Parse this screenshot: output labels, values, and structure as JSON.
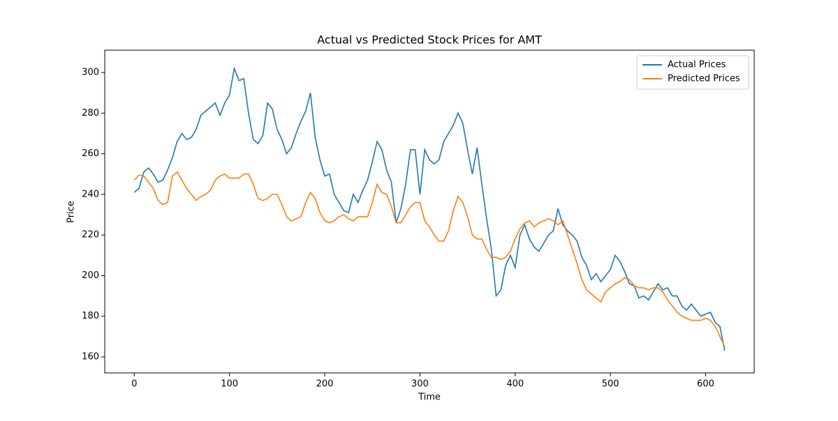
{
  "chart_data": {
    "type": "line",
    "title": "Actual vs Predicted Stock Prices for AMT",
    "xlabel": "Time",
    "ylabel": "Price",
    "x": [
      0,
      5,
      10,
      15,
      20,
      25,
      30,
      35,
      40,
      45,
      50,
      55,
      60,
      65,
      70,
      75,
      80,
      85,
      90,
      95,
      100,
      105,
      110,
      115,
      120,
      125,
      130,
      135,
      140,
      145,
      150,
      155,
      160,
      165,
      170,
      175,
      180,
      185,
      190,
      195,
      200,
      205,
      210,
      215,
      220,
      225,
      230,
      235,
      240,
      245,
      250,
      255,
      260,
      265,
      270,
      275,
      280,
      285,
      290,
      295,
      300,
      305,
      310,
      315,
      320,
      325,
      330,
      335,
      340,
      345,
      350,
      355,
      360,
      365,
      370,
      375,
      380,
      385,
      390,
      395,
      400,
      405,
      410,
      415,
      420,
      425,
      430,
      435,
      440,
      445,
      450,
      455,
      460,
      465,
      470,
      475,
      480,
      485,
      490,
      495,
      500,
      505,
      510,
      515,
      520,
      525,
      530,
      535,
      540,
      545,
      550,
      555,
      560,
      565,
      570,
      575,
      580,
      585,
      590,
      595,
      600,
      605,
      610,
      615,
      620
    ],
    "series": [
      {
        "name": "Actual Prices",
        "color": "#1f77b4",
        "values": [
          241,
          243,
          251,
          253,
          250,
          246,
          247,
          252,
          258,
          266,
          270,
          267,
          268,
          272,
          279,
          281,
          283,
          285,
          279,
          285,
          289,
          302,
          296,
          297,
          280,
          267,
          265,
          269,
          285,
          282,
          272,
          267,
          260,
          263,
          270,
          276,
          281,
          290,
          268,
          257,
          249,
          250,
          240,
          236,
          232,
          231,
          240,
          236,
          242,
          247,
          256,
          266,
          262,
          252,
          246,
          226,
          233,
          245,
          262,
          262,
          240,
          262,
          257,
          255,
          257,
          266,
          270,
          274,
          280,
          275,
          262,
          250,
          263,
          245,
          228,
          213,
          190,
          193,
          205,
          210,
          204,
          220,
          225,
          218,
          214,
          212,
          216,
          220,
          222,
          233,
          225,
          222,
          220,
          217,
          209,
          205,
          198,
          201,
          197,
          200,
          203,
          210,
          207,
          202,
          196,
          195,
          189,
          190,
          188,
          192,
          196,
          193,
          194,
          190,
          190,
          185,
          183,
          186,
          183,
          180,
          181,
          182,
          177,
          175,
          163
        ]
      },
      {
        "name": "Predicted Prices",
        "color": "#ff7f0e",
        "values": [
          247,
          249.5,
          249,
          246,
          243,
          237,
          235,
          236,
          249,
          251,
          247,
          243,
          240,
          237,
          239,
          240,
          242,
          247,
          249,
          250,
          248,
          248,
          248,
          250,
          250,
          245,
          238,
          237,
          238,
          240,
          240,
          235,
          229,
          227,
          228,
          229,
          236,
          241,
          238,
          231,
          227,
          226,
          227,
          229,
          230,
          228,
          227,
          229,
          229,
          229,
          236,
          245,
          241,
          240,
          234,
          226,
          226,
          230,
          234,
          236,
          236,
          227,
          224,
          220,
          217,
          217,
          222,
          232,
          239,
          236,
          229,
          220,
          218,
          218,
          213,
          209,
          209,
          208,
          209,
          212,
          218,
          223,
          226,
          227,
          224,
          226,
          227,
          228,
          227,
          225,
          227,
          220,
          213,
          206,
          198,
          193,
          191,
          189,
          187,
          192,
          194,
          196,
          197,
          199,
          198,
          195,
          194,
          194,
          193,
          194,
          194,
          192,
          188,
          185,
          182,
          180,
          179,
          178,
          178,
          178,
          179,
          178,
          175,
          170,
          165
        ]
      }
    ],
    "xlim": [
      -31,
      651
    ],
    "ylim": [
      152.1,
      311
    ],
    "xticks": [
      0,
      100,
      200,
      300,
      400,
      500,
      600
    ],
    "yticks": [
      160,
      180,
      200,
      220,
      240,
      260,
      280,
      300
    ],
    "legend": "upper right"
  }
}
